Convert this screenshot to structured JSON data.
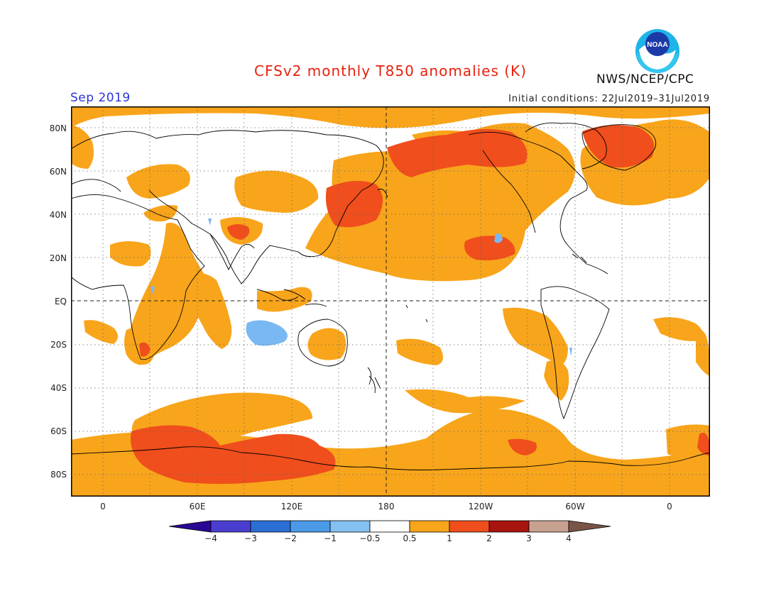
{
  "header": {
    "title": "CFSv2 monthly T850 anomalies (K)",
    "agency": "NWS/NCEP/CPC",
    "period": "Sep 2019",
    "initial_conditions": "Initial conditions: 22Jul2019–31Jul2019",
    "logo_text": "NOAA"
  },
  "map": {
    "projection": "equirectangular",
    "longitude_range": "20W to 20E (wrapped, 0 to 180 to 0)",
    "latitude_range": [
      -90,
      90
    ],
    "grid_lines": "dotted every 30 degrees longitude and 20 degrees latitude",
    "dashed_lines": [
      "EQ",
      "180"
    ],
    "y_axis_labels": [
      "80N",
      "60N",
      "40N",
      "20N",
      "EQ",
      "20S",
      "40S",
      "60S",
      "80S"
    ],
    "x_axis_labels": [
      "0",
      "60E",
      "120E",
      "180",
      "120W",
      "60W",
      "0"
    ],
    "colors": {
      "anomaly_0_5_to_1": "#f8a51b",
      "anomaly_1_to_2": "#f04e1c",
      "anomaly_2_to_3": "#a8140e",
      "anomaly_neg_0_5_to_neg_1": "#79b8f2",
      "coastline": "#000000"
    }
  },
  "colorbar": {
    "labels": [
      "−4",
      "−3",
      "−2",
      "−1",
      "−0.5",
      "0.5",
      "1",
      "2",
      "3",
      "4"
    ],
    "colors": [
      "#2a0896",
      "#4a3ed0",
      "#2a6ed6",
      "#4b9ae8",
      "#85c0f2",
      "#ffffff",
      "#f8a51b",
      "#f04e1c",
      "#a8140e",
      "#c7a290",
      "#7a5447"
    ]
  }
}
